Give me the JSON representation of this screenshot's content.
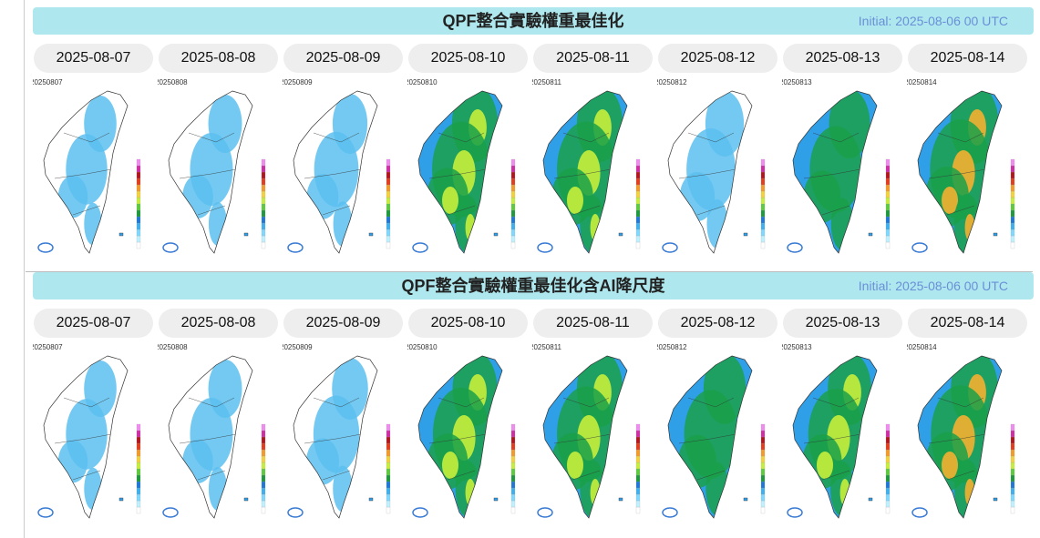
{
  "panels": [
    {
      "title": "QPF整合實驗權重最佳化",
      "initial": "Initial: 2025-08-06 00 UTC",
      "days": [
        {
          "date": "2025-08-07",
          "map_label": "20250807"
        },
        {
          "date": "2025-08-08",
          "map_label": "20250808"
        },
        {
          "date": "2025-08-09",
          "map_label": "20250809"
        },
        {
          "date": "2025-08-10",
          "map_label": "20250810"
        },
        {
          "date": "2025-08-11",
          "map_label": "20250811"
        },
        {
          "date": "2025-08-12",
          "map_label": "20250812"
        },
        {
          "date": "2025-08-13",
          "map_label": "20250813"
        },
        {
          "date": "2025-08-14",
          "map_label": "20250814"
        }
      ]
    },
    {
      "title": "QPF整合實驗權重最佳化含AI降尺度",
      "initial": "Initial: 2025-08-06 00 UTC",
      "days": [
        {
          "date": "2025-08-07",
          "map_label": "20250807"
        },
        {
          "date": "2025-08-08",
          "map_label": "20250808"
        },
        {
          "date": "2025-08-09",
          "map_label": "20250809"
        },
        {
          "date": "2025-08-10",
          "map_label": "20250810"
        },
        {
          "date": "2025-08-11",
          "map_label": "20250811"
        },
        {
          "date": "2025-08-12",
          "map_label": "20250812"
        },
        {
          "date": "2025-08-13",
          "map_label": "20250813"
        },
        {
          "date": "2025-08-14",
          "map_label": "20250814"
        }
      ]
    }
  ]
}
